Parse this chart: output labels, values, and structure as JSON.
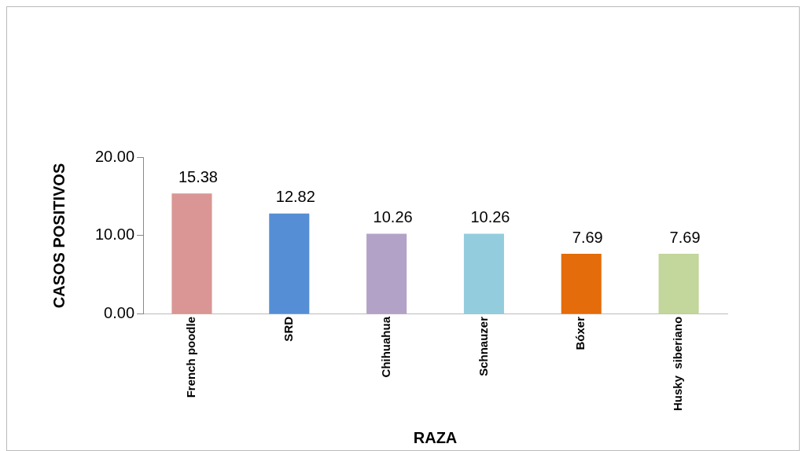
{
  "chart_data": {
    "type": "bar",
    "xlabel": "RAZA",
    "ylabel": "CASOS POSITIVOS",
    "categories": [
      "French poodle",
      "SRD",
      "Chihuahua",
      "Schnauzer",
      "Bóxer",
      "Husky  siberiano"
    ],
    "values": [
      15.38,
      12.82,
      10.26,
      10.26,
      7.69,
      7.69
    ],
    "colors": [
      "#d99694",
      "#558ed5",
      "#b3a2c7",
      "#93cddd",
      "#e46c0a",
      "#c3d69b"
    ],
    "ylim": [
      0,
      20
    ],
    "yticks": [
      {
        "value": 0,
        "label": "0.00"
      },
      {
        "value": 10,
        "label": "10.00"
      },
      {
        "value": 20,
        "label": "20.00"
      }
    ],
    "data_labels": true,
    "grid": false,
    "legend": false
  }
}
